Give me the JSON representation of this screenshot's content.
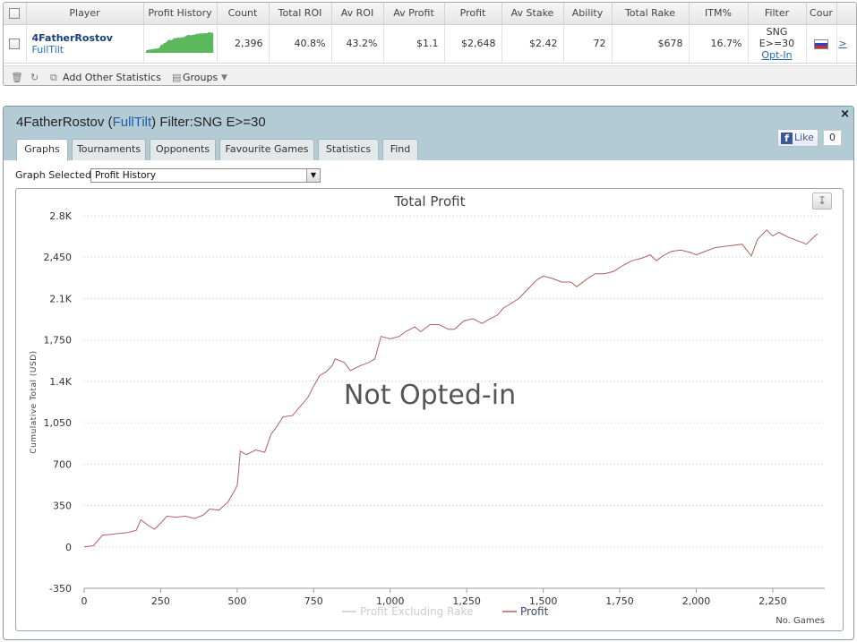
{
  "stats_table": {
    "columns": [
      "Player",
      "Profit History",
      "Count",
      "Total ROI",
      "Av ROI",
      "Av Profit",
      "Profit",
      "Av Stake",
      "Ability",
      "Total Rake",
      "ITM%",
      "Filter",
      "Cour"
    ],
    "row": {
      "player_name": "4FatherRostov",
      "site": "FullTilt",
      "count": "2,396",
      "total_roi": "40.8%",
      "av_roi": "43.2%",
      "av_profit": "$1.1",
      "profit": "$2,648",
      "av_stake": "$2.42",
      "ability": "72",
      "total_rake": "$678",
      "itm": "16.7%",
      "filter_line1": "SNG",
      "filter_line2": "E>=30",
      "opt_in": "Opt-In",
      "country": "Russia",
      "more_link": ">"
    }
  },
  "toolbar": {
    "add_other_statistics": "Add Other Statistics",
    "groups": "Groups"
  },
  "panel": {
    "title_player": "4FatherRostov",
    "title_site": "FullTilt",
    "title_filter": "Filter:SNG E>=30",
    "close": "×",
    "fb_like": "Like",
    "fb_count": "0",
    "tabs": [
      "Graphs",
      "Tournaments",
      "Opponents",
      "Favourite Games",
      "Statistics",
      "Find"
    ],
    "active_tab": "Graphs",
    "graph_selected_label": "Graph Selected:",
    "graph_selected_value": "Profit History"
  },
  "chart_data": {
    "type": "line",
    "title": "Total Profit",
    "xlabel": "No. Games",
    "ylabel": "Cumulative Total (USD)",
    "watermark": "Not Opted-in",
    "xlim": [
      0,
      2420
    ],
    "ylim": [
      -350,
      2800
    ],
    "x_ticks": [
      0,
      250,
      500,
      750,
      1000,
      1250,
      1500,
      1750,
      2000,
      2250
    ],
    "x_tick_labels": [
      "0",
      "250",
      "500",
      "750",
      "1,000",
      "1,250",
      "1,500",
      "1,750",
      "2,000",
      "2,250"
    ],
    "y_ticks": [
      -350,
      0,
      350,
      700,
      1050,
      1400,
      1750,
      2100,
      2450,
      2800
    ],
    "y_tick_labels": [
      "-350",
      "0",
      "350",
      "700",
      "1,050",
      "1.4K",
      "1,750",
      "2.1K",
      "2,450",
      "2.8K"
    ],
    "grid": true,
    "legend_position": "bottom",
    "series": [
      {
        "name": "Profit Excluding Rake",
        "color": "#d0d0d0",
        "hidden": true,
        "points": []
      },
      {
        "name": "Profit",
        "color": "#b06060",
        "points": [
          [
            0,
            0
          ],
          [
            30,
            10
          ],
          [
            60,
            100
          ],
          [
            100,
            110
          ],
          [
            140,
            120
          ],
          [
            170,
            140
          ],
          [
            185,
            230
          ],
          [
            210,
            180
          ],
          [
            230,
            150
          ],
          [
            250,
            200
          ],
          [
            270,
            260
          ],
          [
            300,
            250
          ],
          [
            330,
            260
          ],
          [
            360,
            240
          ],
          [
            390,
            270
          ],
          [
            410,
            320
          ],
          [
            440,
            310
          ],
          [
            470,
            380
          ],
          [
            490,
            470
          ],
          [
            500,
            520
          ],
          [
            505,
            650
          ],
          [
            510,
            810
          ],
          [
            530,
            780
          ],
          [
            560,
            820
          ],
          [
            590,
            800
          ],
          [
            610,
            950
          ],
          [
            630,
            1020
          ],
          [
            650,
            1100
          ],
          [
            680,
            1110
          ],
          [
            710,
            1200
          ],
          [
            730,
            1260
          ],
          [
            750,
            1360
          ],
          [
            770,
            1450
          ],
          [
            790,
            1480
          ],
          [
            810,
            1530
          ],
          [
            820,
            1590
          ],
          [
            850,
            1560
          ],
          [
            870,
            1490
          ],
          [
            900,
            1530
          ],
          [
            930,
            1560
          ],
          [
            950,
            1590
          ],
          [
            970,
            1780
          ],
          [
            1000,
            1760
          ],
          [
            1030,
            1780
          ],
          [
            1050,
            1820
          ],
          [
            1080,
            1860
          ],
          [
            1100,
            1820
          ],
          [
            1130,
            1880
          ],
          [
            1160,
            1880
          ],
          [
            1190,
            1840
          ],
          [
            1210,
            1840
          ],
          [
            1240,
            1910
          ],
          [
            1270,
            1930
          ],
          [
            1300,
            1890
          ],
          [
            1320,
            1920
          ],
          [
            1350,
            1960
          ],
          [
            1370,
            2020
          ],
          [
            1390,
            2050
          ],
          [
            1420,
            2100
          ],
          [
            1450,
            2180
          ],
          [
            1480,
            2260
          ],
          [
            1500,
            2290
          ],
          [
            1530,
            2270
          ],
          [
            1560,
            2240
          ],
          [
            1590,
            2240
          ],
          [
            1610,
            2200
          ],
          [
            1640,
            2260
          ],
          [
            1670,
            2310
          ],
          [
            1700,
            2310
          ],
          [
            1730,
            2330
          ],
          [
            1760,
            2380
          ],
          [
            1790,
            2420
          ],
          [
            1820,
            2440
          ],
          [
            1850,
            2470
          ],
          [
            1870,
            2420
          ],
          [
            1890,
            2460
          ],
          [
            1920,
            2500
          ],
          [
            1950,
            2510
          ],
          [
            1980,
            2490
          ],
          [
            2000,
            2470
          ],
          [
            2030,
            2500
          ],
          [
            2060,
            2530
          ],
          [
            2090,
            2540
          ],
          [
            2120,
            2550
          ],
          [
            2150,
            2560
          ],
          [
            2180,
            2460
          ],
          [
            2200,
            2600
          ],
          [
            2230,
            2680
          ],
          [
            2250,
            2630
          ],
          [
            2270,
            2660
          ],
          [
            2300,
            2620
          ],
          [
            2330,
            2590
          ],
          [
            2360,
            2560
          ],
          [
            2380,
            2610
          ],
          [
            2396,
            2648
          ]
        ]
      }
    ]
  }
}
